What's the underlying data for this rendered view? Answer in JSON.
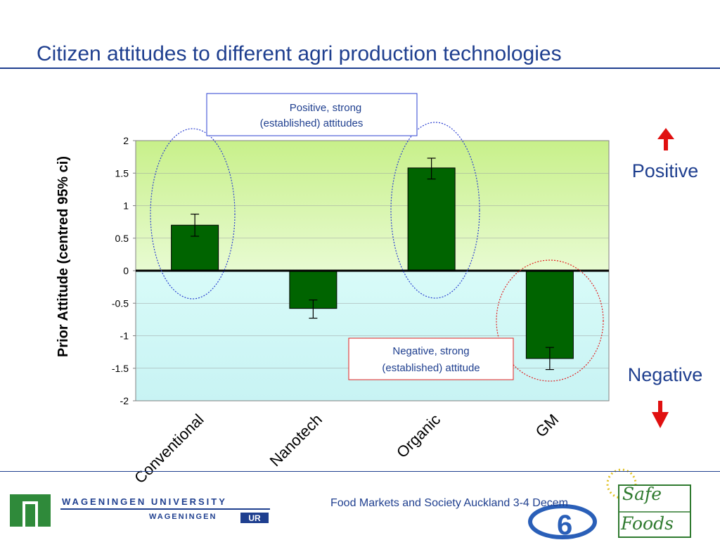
{
  "slide": {
    "title": "Citizen  attitudes to different agri production technologies",
    "footer_text": "Food Markets and Society Auckland 3-4 Decem",
    "positive_label": "Positive",
    "negative_label": "Negative",
    "annotation_positive_line1": "Positive, strong",
    "annotation_positive_line2": "(established) attitudes",
    "annotation_negative_line1": "Negative, strong",
    "annotation_negative_line2": "(established) attitude",
    "wageningen_line1": "WAGENINGEN UNIVERSITY",
    "wageningen_line2": "WAGENINGEN",
    "wageningen_ur": "UR",
    "safefoods_line1": "Safe",
    "safefoods_line2": "Foods",
    "colors": {
      "title": "#1f3f8f",
      "bar": "#006400",
      "positive_bg": "#d8f7a8",
      "negative_bg": "#cdf7f4",
      "arrow": "#e01010"
    }
  },
  "chart_data": {
    "type": "bar",
    "categories": [
      "Conventional",
      "Nanotech",
      "Organic",
      "GM"
    ],
    "values": [
      0.7,
      -0.58,
      1.58,
      -1.35
    ],
    "error_low": [
      0.53,
      -0.73,
      1.41,
      -1.52
    ],
    "error_high": [
      0.87,
      -0.45,
      1.73,
      -1.18
    ],
    "ylabel": "Prior Attitude (centred  95% ci)",
    "xlabel": "",
    "ylim": [
      -2,
      2
    ],
    "yticks": [
      "2",
      "1.5",
      "1",
      "0.5",
      "0",
      "-0.5",
      "-1",
      "-1.5",
      "-2"
    ],
    "ytick_values": [
      2,
      1.5,
      1,
      0.5,
      0,
      -0.5,
      -1,
      -1.5,
      -2
    ],
    "grid": true
  }
}
